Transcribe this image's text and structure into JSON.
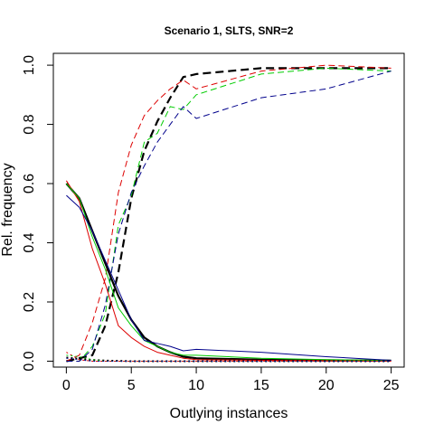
{
  "chart_data": {
    "type": "line",
    "title": "Scenario 1, SLTS, SNR=2",
    "xlabel": "Outlying instances",
    "ylabel": "Rel. frequency",
    "xlim": [
      -1,
      26
    ],
    "ylim": [
      -0.02,
      1.04
    ],
    "xticks": [
      0,
      5,
      10,
      15,
      20,
      25
    ],
    "yticks": [
      0.0,
      0.2,
      0.4,
      0.6,
      0.8,
      1.0
    ],
    "xtick_labels": [
      "0",
      "5",
      "10",
      "15",
      "20",
      "25"
    ],
    "ytick_labels": [
      "0.0",
      "0.2",
      "0.4",
      "0.6",
      "0.8",
      "1.0"
    ],
    "grid": false,
    "legend": "none",
    "x": [
      0,
      1,
      2,
      3,
      4,
      5,
      6,
      7,
      8,
      9,
      10,
      15,
      20,
      25
    ],
    "series": [
      {
        "color": "#000000",
        "dash": "9,5",
        "width": 2.2,
        "values": [
          0.0,
          0.01,
          0.02,
          0.12,
          0.3,
          0.55,
          0.71,
          0.81,
          0.89,
          0.96,
          0.97,
          0.99,
          0.99,
          0.99
        ]
      },
      {
        "color": "#dd0000",
        "dash": "7,4",
        "width": 1,
        "values": [
          0.0,
          0.02,
          0.13,
          0.28,
          0.57,
          0.73,
          0.83,
          0.88,
          0.92,
          0.95,
          0.92,
          0.98,
          1.0,
          0.99
        ]
      },
      {
        "color": "#00cc00",
        "dash": "7,4",
        "width": 1,
        "values": [
          0.0,
          0.0,
          0.05,
          0.16,
          0.46,
          0.56,
          0.74,
          0.77,
          0.86,
          0.85,
          0.9,
          0.97,
          0.99,
          0.98
        ]
      },
      {
        "color": "#00008b",
        "dash": "7,4",
        "width": 1,
        "values": [
          0.0,
          0.0,
          0.04,
          0.19,
          0.43,
          0.57,
          0.66,
          0.74,
          0.8,
          0.86,
          0.82,
          0.89,
          0.92,
          0.98
        ]
      },
      {
        "color": "#000000",
        "dash": "",
        "width": 2.2,
        "values": [
          0.6,
          0.55,
          0.44,
          0.33,
          0.22,
          0.14,
          0.08,
          0.05,
          0.03,
          0.015,
          0.01,
          0.005,
          0.003,
          0.002
        ]
      },
      {
        "color": "#dd0000",
        "dash": "",
        "width": 1,
        "values": [
          0.61,
          0.54,
          0.38,
          0.26,
          0.12,
          0.08,
          0.05,
          0.03,
          0.02,
          0.01,
          0.005,
          0.003,
          0.002,
          0.002
        ]
      },
      {
        "color": "#00cc00",
        "dash": "",
        "width": 1,
        "values": [
          0.6,
          0.55,
          0.42,
          0.31,
          0.18,
          0.12,
          0.07,
          0.05,
          0.03,
          0.02,
          0.02,
          0.01,
          0.005,
          0.003
        ]
      },
      {
        "color": "#00008b",
        "dash": "",
        "width": 1,
        "values": [
          0.56,
          0.52,
          0.44,
          0.34,
          0.24,
          0.14,
          0.07,
          0.06,
          0.05,
          0.035,
          0.04,
          0.03,
          0.015,
          0.003
        ]
      },
      {
        "color": "#000000",
        "dash": "2,3",
        "width": 2,
        "values": [
          0.012,
          0.008,
          0.004,
          0.002,
          0.001,
          0.0,
          0.0,
          0.0,
          0.0,
          0.0,
          0.0,
          0.0,
          0.0,
          0.0
        ]
      },
      {
        "color": "#dd0000",
        "dash": "2,3",
        "width": 1,
        "values": [
          0.03,
          0.005,
          0.0,
          0.0,
          0.0,
          0.0,
          0.0,
          0.0,
          0.0,
          0.0,
          0.0,
          0.0,
          0.0,
          0.0
        ]
      },
      {
        "color": "#00cc00",
        "dash": "2,3",
        "width": 1,
        "values": [
          0.02,
          0.015,
          0.005,
          0.0,
          0.0,
          0.0,
          0.0,
          0.0,
          0.0,
          0.0,
          0.0,
          0.0,
          0.0,
          0.0
        ]
      },
      {
        "color": "#00008b",
        "dash": "2,3",
        "width": 1,
        "values": [
          0.01,
          0.005,
          0.0,
          0.0,
          0.0,
          0.0,
          0.0,
          0.0,
          0.0,
          0.0,
          0.0,
          0.0,
          0.0,
          0.0
        ]
      }
    ]
  }
}
